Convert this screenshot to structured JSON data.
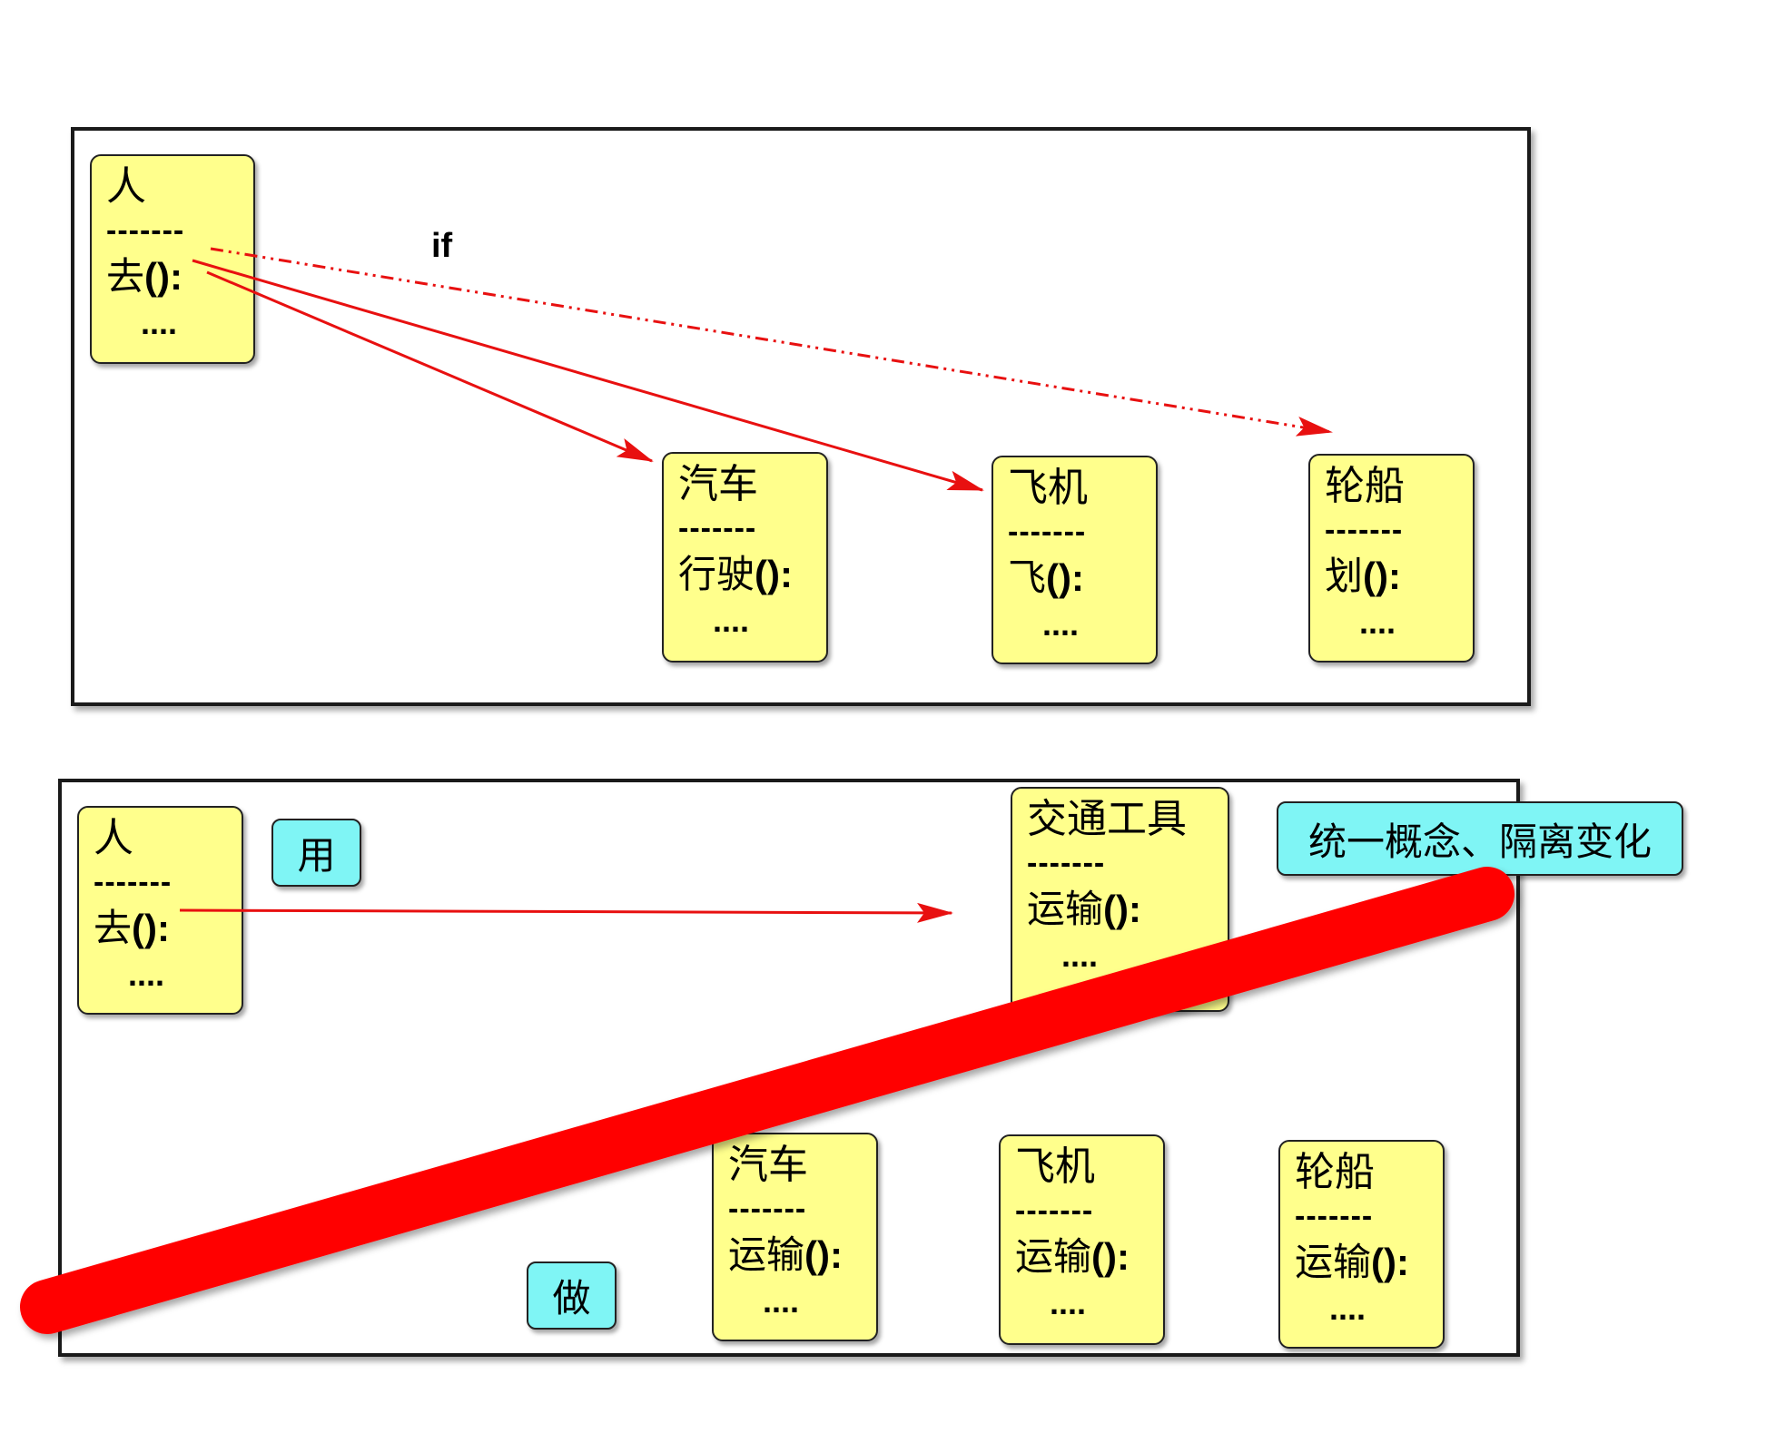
{
  "top_diagram": {
    "person": {
      "name": "人",
      "separator": "-------",
      "method_name": "去",
      "method_suffix": "():",
      "dots": "...."
    },
    "car": {
      "name": "汽车",
      "separator": "-------",
      "method_name": "行驶",
      "method_suffix": "():",
      "dots": "...."
    },
    "plane": {
      "name": "飞机",
      "separator": "-------",
      "method_name": "飞",
      "method_suffix": "():",
      "dots": "...."
    },
    "ship": {
      "name": "轮船",
      "separator": "-------",
      "method_name": "划",
      "method_suffix": "():",
      "dots": "...."
    },
    "if_label": "if"
  },
  "bottom_diagram": {
    "person": {
      "name": "人",
      "separator": "-------",
      "method_name": "去",
      "method_suffix": "():",
      "dots": "...."
    },
    "transport": {
      "name": "交通工具",
      "separator": "-------",
      "method_name": "运输",
      "method_suffix": "():",
      "dots": "...."
    },
    "car": {
      "name": "汽车",
      "separator": "-------",
      "method_name": "运输",
      "method_suffix": "():",
      "dots": "...."
    },
    "plane": {
      "name": "飞机",
      "separator": "-------",
      "method_name": "运输",
      "method_suffix": "():",
      "dots": "...."
    },
    "ship": {
      "name": "轮船",
      "separator": "-------",
      "method_name": "运输",
      "method_suffix": "():",
      "dots": "...."
    },
    "use_label": "用",
    "do_label": "做",
    "concept_label": "统一概念、隔离变化"
  },
  "colors": {
    "box_fill": "#ffff8c",
    "note_fill": "#7ff5f5",
    "arrow": "#e81010",
    "slash": "#ff0000"
  }
}
